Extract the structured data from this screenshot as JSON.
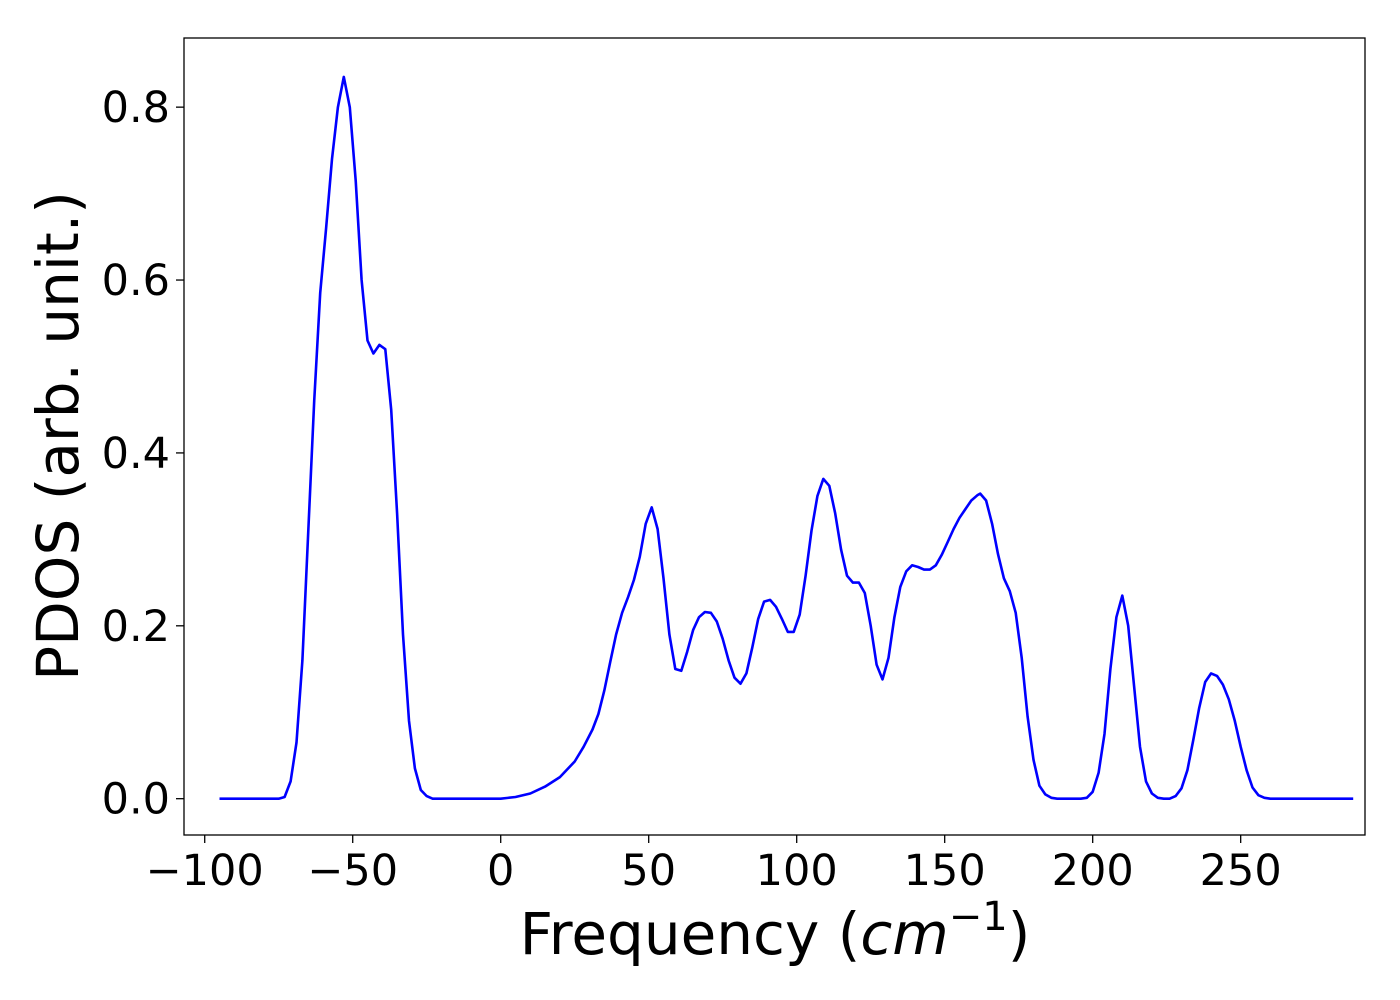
{
  "chart_data": {
    "type": "line",
    "title": "",
    "xlabel": "Frequency (",
    "xlabel_unit_base": "cm",
    "xlabel_unit_exp": "−1",
    "xlabel_close": ")",
    "ylabel": "PDOS (arb. unit.)",
    "xlim": [
      -107,
      292
    ],
    "ylim": [
      -0.042,
      0.88
    ],
    "x_ticks": [
      -100,
      -50,
      0,
      50,
      100,
      150,
      200,
      250
    ],
    "x_tick_labels": [
      "−100",
      "−50",
      "0",
      "50",
      "100",
      "150",
      "200",
      "250"
    ],
    "y_ticks": [
      0.0,
      0.2,
      0.4,
      0.6,
      0.8
    ],
    "y_tick_labels": [
      "0.0",
      "0.2",
      "0.4",
      "0.6",
      "0.8"
    ],
    "grid": false,
    "legend": "none",
    "series": [
      {
        "color": "#0000ff",
        "points": [
          [
            -95,
            0.0
          ],
          [
            -75,
            0.0
          ],
          [
            -73,
            0.002
          ],
          [
            -71,
            0.02
          ],
          [
            -69,
            0.065
          ],
          [
            -67,
            0.16
          ],
          [
            -65,
            0.31
          ],
          [
            -63,
            0.46
          ],
          [
            -61,
            0.585
          ],
          [
            -59,
            0.66
          ],
          [
            -57,
            0.74
          ],
          [
            -55,
            0.8
          ],
          [
            -53,
            0.835
          ],
          [
            -51,
            0.8
          ],
          [
            -49,
            0.715
          ],
          [
            -47,
            0.6
          ],
          [
            -45,
            0.53
          ],
          [
            -43,
            0.515
          ],
          [
            -41,
            0.525
          ],
          [
            -39,
            0.52
          ],
          [
            -37,
            0.45
          ],
          [
            -35,
            0.33
          ],
          [
            -33,
            0.19
          ],
          [
            -31,
            0.09
          ],
          [
            -29,
            0.035
          ],
          [
            -27,
            0.01
          ],
          [
            -25,
            0.003
          ],
          [
            -23,
            0.0
          ],
          [
            0,
            0.0
          ],
          [
            5,
            0.002
          ],
          [
            10,
            0.006
          ],
          [
            15,
            0.014
          ],
          [
            20,
            0.025
          ],
          [
            25,
            0.043
          ],
          [
            28,
            0.06
          ],
          [
            31,
            0.08
          ],
          [
            33,
            0.098
          ],
          [
            35,
            0.125
          ],
          [
            37,
            0.158
          ],
          [
            39,
            0.19
          ],
          [
            41,
            0.215
          ],
          [
            43,
            0.233
          ],
          [
            45,
            0.253
          ],
          [
            47,
            0.28
          ],
          [
            49,
            0.318
          ],
          [
            51,
            0.337
          ],
          [
            53,
            0.312
          ],
          [
            55,
            0.255
          ],
          [
            57,
            0.19
          ],
          [
            59,
            0.15
          ],
          [
            61,
            0.148
          ],
          [
            63,
            0.17
          ],
          [
            65,
            0.195
          ],
          [
            67,
            0.21
          ],
          [
            69,
            0.216
          ],
          [
            71,
            0.215
          ],
          [
            73,
            0.205
          ],
          [
            75,
            0.185
          ],
          [
            77,
            0.16
          ],
          [
            79,
            0.14
          ],
          [
            81,
            0.133
          ],
          [
            83,
            0.145
          ],
          [
            85,
            0.175
          ],
          [
            87,
            0.208
          ],
          [
            89,
            0.228
          ],
          [
            91,
            0.23
          ],
          [
            93,
            0.222
          ],
          [
            95,
            0.208
          ],
          [
            97,
            0.193
          ],
          [
            99,
            0.193
          ],
          [
            101,
            0.213
          ],
          [
            103,
            0.258
          ],
          [
            105,
            0.31
          ],
          [
            107,
            0.35
          ],
          [
            109,
            0.37
          ],
          [
            111,
            0.362
          ],
          [
            113,
            0.33
          ],
          [
            115,
            0.288
          ],
          [
            117,
            0.258
          ],
          [
            119,
            0.25
          ],
          [
            121,
            0.25
          ],
          [
            123,
            0.238
          ],
          [
            125,
            0.2
          ],
          [
            127,
            0.155
          ],
          [
            129,
            0.138
          ],
          [
            131,
            0.163
          ],
          [
            133,
            0.21
          ],
          [
            135,
            0.245
          ],
          [
            137,
            0.263
          ],
          [
            139,
            0.27
          ],
          [
            141,
            0.268
          ],
          [
            143,
            0.265
          ],
          [
            145,
            0.265
          ],
          [
            147,
            0.27
          ],
          [
            149,
            0.282
          ],
          [
            151,
            0.297
          ],
          [
            153,
            0.312
          ],
          [
            155,
            0.325
          ],
          [
            157,
            0.335
          ],
          [
            159,
            0.345
          ],
          [
            161,
            0.351
          ],
          [
            162,
            0.353
          ],
          [
            164,
            0.345
          ],
          [
            166,
            0.318
          ],
          [
            168,
            0.283
          ],
          [
            170,
            0.255
          ],
          [
            172,
            0.24
          ],
          [
            174,
            0.215
          ],
          [
            176,
            0.163
          ],
          [
            178,
            0.095
          ],
          [
            180,
            0.045
          ],
          [
            182,
            0.015
          ],
          [
            184,
            0.005
          ],
          [
            186,
            0.001
          ],
          [
            188,
            0.0
          ],
          [
            196,
            0.0
          ],
          [
            198,
            0.001
          ],
          [
            200,
            0.008
          ],
          [
            202,
            0.03
          ],
          [
            204,
            0.075
          ],
          [
            206,
            0.15
          ],
          [
            208,
            0.21
          ],
          [
            210,
            0.235
          ],
          [
            212,
            0.2
          ],
          [
            214,
            0.13
          ],
          [
            216,
            0.06
          ],
          [
            218,
            0.02
          ],
          [
            220,
            0.006
          ],
          [
            222,
            0.001
          ],
          [
            224,
            0.0
          ],
          [
            226,
            0.0
          ],
          [
            228,
            0.003
          ],
          [
            230,
            0.012
          ],
          [
            232,
            0.033
          ],
          [
            234,
            0.068
          ],
          [
            236,
            0.105
          ],
          [
            238,
            0.135
          ],
          [
            240,
            0.145
          ],
          [
            242,
            0.142
          ],
          [
            244,
            0.132
          ],
          [
            246,
            0.115
          ],
          [
            248,
            0.09
          ],
          [
            250,
            0.06
          ],
          [
            252,
            0.033
          ],
          [
            254,
            0.013
          ],
          [
            256,
            0.004
          ],
          [
            258,
            0.001
          ],
          [
            260,
            0.0
          ],
          [
            288,
            0.0
          ]
        ]
      }
    ]
  }
}
